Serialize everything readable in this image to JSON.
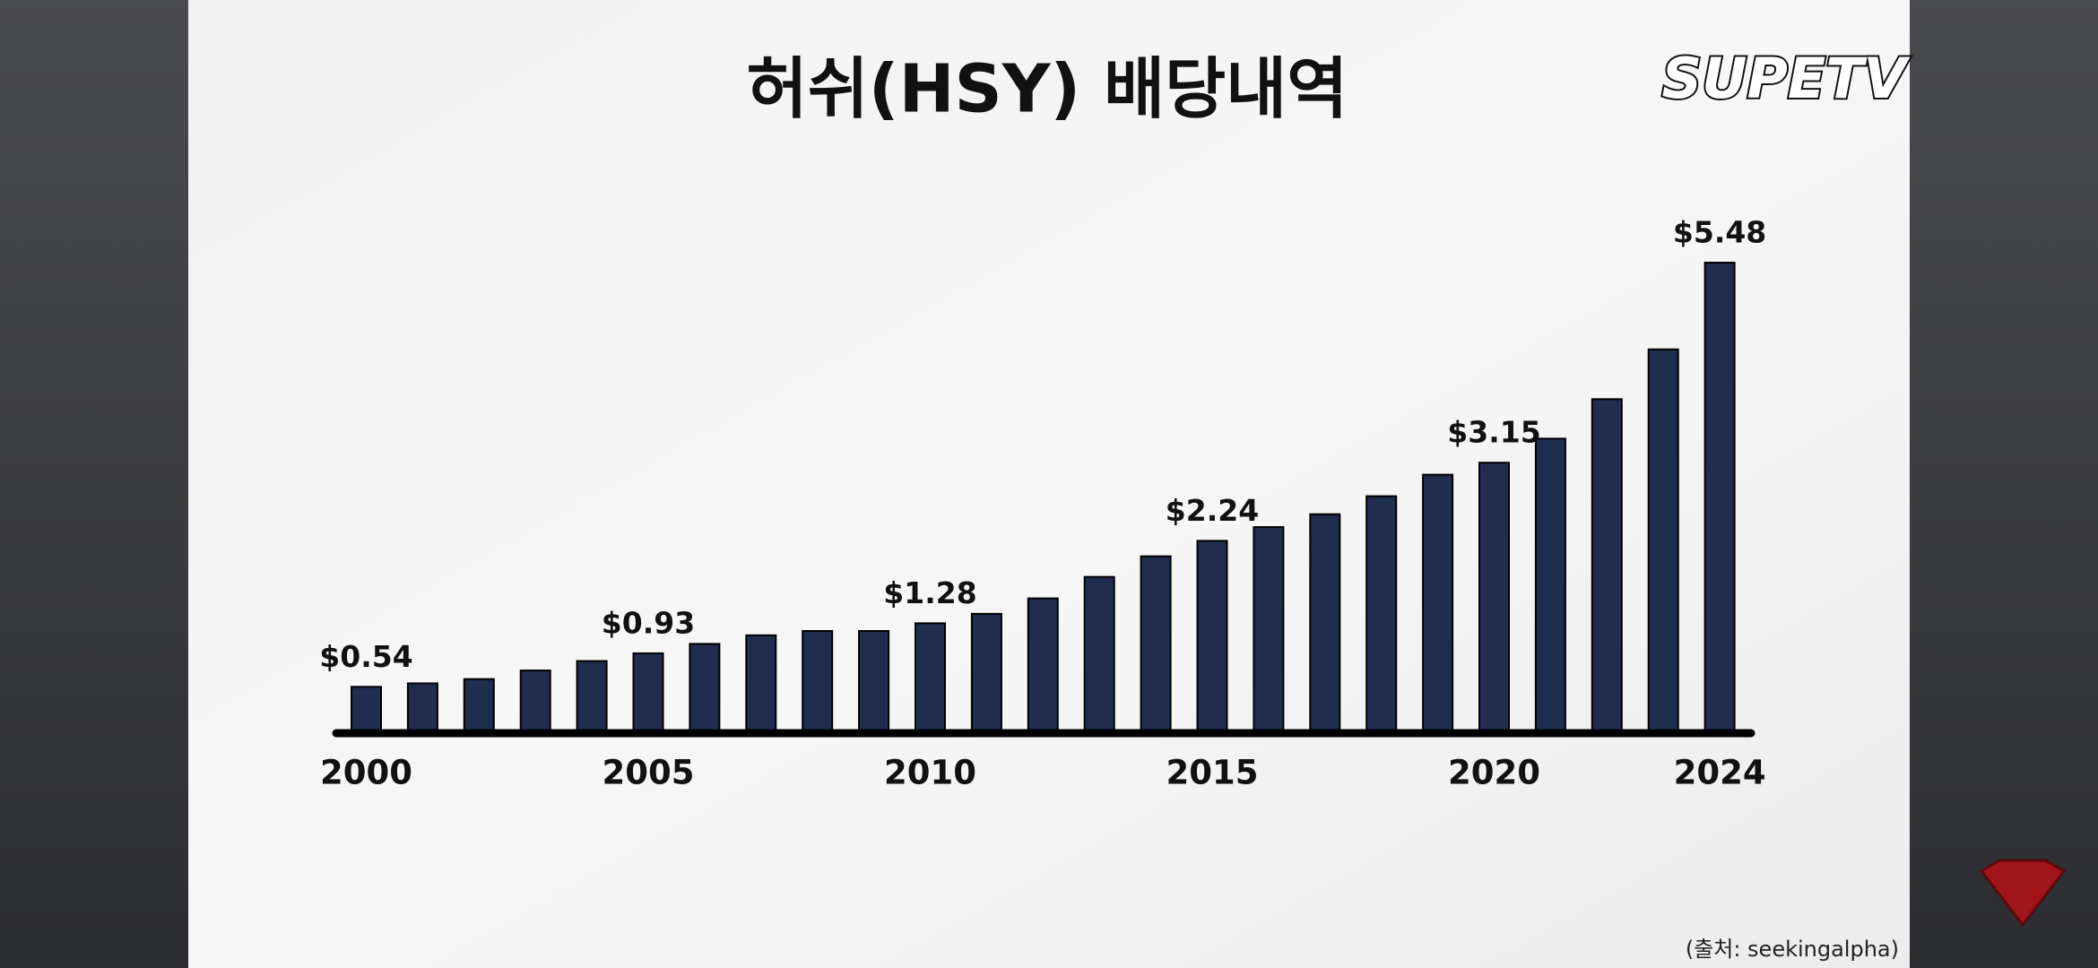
{
  "chart_data": {
    "type": "bar",
    "title": "허쉬(HSY) 배당내역",
    "source": "(출처: seekingalpha)",
    "categories": [
      "2000",
      null,
      null,
      null,
      null,
      "2005",
      null,
      null,
      null,
      null,
      "2010",
      null,
      null,
      null,
      null,
      "2015",
      null,
      null,
      null,
      null,
      "2020",
      null,
      null,
      null,
      "2024"
    ],
    "values": [
      0.54,
      0.58,
      0.63,
      0.73,
      0.84,
      0.93,
      1.04,
      1.14,
      1.19,
      1.19,
      1.28,
      1.39,
      1.57,
      1.82,
      2.06,
      2.24,
      2.4,
      2.55,
      2.76,
      3.01,
      3.15,
      3.43,
      3.89,
      4.47,
      5.48
    ],
    "value_labels": [
      "$0.54",
      null,
      null,
      null,
      null,
      "$0.93",
      null,
      null,
      null,
      null,
      "$1.28",
      null,
      null,
      null,
      null,
      "$2.24",
      null,
      null,
      null,
      null,
      "$3.15",
      null,
      null,
      null,
      "$5.48"
    ],
    "color": "#1f2d4f"
  },
  "logo": "SUPETV"
}
